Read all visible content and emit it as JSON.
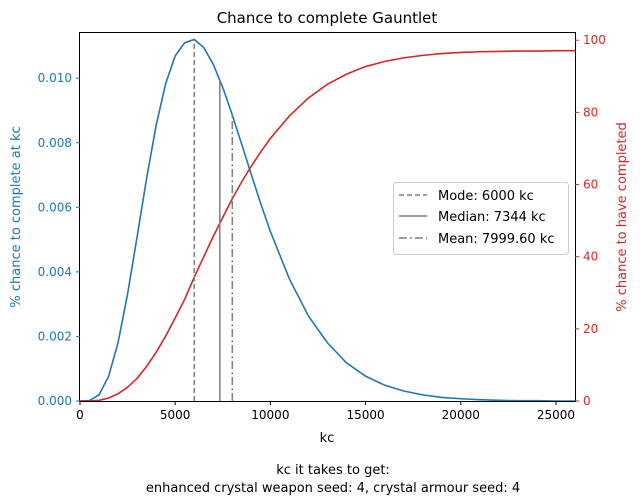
{
  "chart_data": {
    "type": "line",
    "title": "Chance to complete Gauntlet",
    "xlabel": "kc",
    "ylabel_left": "% chance to complete at kc",
    "ylabel_right": "% chance to have completed",
    "xlim": [
      0,
      26000
    ],
    "ylim_left": [
      0,
      0.0114
    ],
    "ylim_right": [
      0,
      102
    ],
    "x_ticks": [
      0,
      5000,
      10000,
      15000,
      20000,
      25000
    ],
    "x_tick_labels": [
      "0",
      "5000",
      "10000",
      "15000",
      "20000",
      "25000"
    ],
    "y_left_ticks": [
      0,
      0.002,
      0.004,
      0.006,
      0.008,
      0.01
    ],
    "y_left_tick_labels": [
      "0.000",
      "0.002",
      "0.004",
      "0.006",
      "0.008",
      "0.010"
    ],
    "y_right_ticks": [
      0,
      20,
      40,
      60,
      80,
      100
    ],
    "y_right_tick_labels": [
      "0",
      "20",
      "40",
      "60",
      "80",
      "100"
    ],
    "grid": false,
    "legend_position": "center-right",
    "series": [
      {
        "axis": "left",
        "color": "#1f77b4",
        "x": [
          0,
          500,
          1000,
          1500,
          2000,
          2500,
          3000,
          3500,
          4000,
          4500,
          5000,
          5500,
          6000,
          6500,
          7000,
          7500,
          8000,
          8500,
          9000,
          9500,
          10000,
          11000,
          12000,
          13000,
          14000,
          15000,
          16000,
          17000,
          18000,
          19000,
          20000,
          21000,
          22000,
          23000,
          24000,
          25000,
          26000
        ],
        "y": [
          0,
          1.5e-05,
          0.00019,
          0.00076,
          0.00181,
          0.00332,
          0.00509,
          0.0069,
          0.00854,
          0.00983,
          0.01069,
          0.0111,
          0.0112,
          0.01095,
          0.01043,
          0.00971,
          0.00886,
          0.00794,
          0.00701,
          0.0061,
          0.00525,
          0.00378,
          0.00263,
          0.0018,
          0.00118,
          0.00077,
          0.00049,
          0.00031,
          0.00019,
          0.00011,
          7e-05,
          4e-05,
          2e-05,
          1e-05,
          1e-05,
          0.0,
          0.0
        ]
      },
      {
        "axis": "right",
        "color": "#d62728",
        "x": [
          0,
          500,
          1000,
          1500,
          2000,
          2500,
          3000,
          3500,
          4000,
          4500,
          5000,
          5500,
          6000,
          6500,
          7000,
          7500,
          8000,
          8500,
          9000,
          9500,
          10000,
          11000,
          12000,
          13000,
          14000,
          15000,
          16000,
          17000,
          18000,
          19000,
          20000,
          21000,
          22000,
          23000,
          24000,
          25000,
          26000
        ],
        "y": [
          0,
          0.0,
          0.2,
          0.8,
          2.0,
          3.8,
          6.3,
          9.6,
          13.5,
          18.0,
          23.0,
          28.2,
          34.3,
          40.0,
          45.6,
          50.9,
          56.1,
          60.8,
          65.1,
          69.1,
          72.8,
          79.0,
          84.0,
          87.8,
          90.6,
          92.7,
          94.1,
          95.1,
          95.8,
          96.3,
          96.6,
          96.8,
          96.9,
          97.0,
          97.0,
          97.1,
          97.1
        ]
      }
    ],
    "vlines": [
      {
        "x": 6000,
        "style": "dashed",
        "color": "#808080",
        "label": "Mode: 6000 kc"
      },
      {
        "x": 7344,
        "style": "solid",
        "color": "#808080",
        "label": "Median: 7344 kc"
      },
      {
        "x": 7999.6,
        "style": "dashdot",
        "color": "#808080",
        "label": "Mean: 7999.60 kc"
      }
    ],
    "caption_lines": [
      "kc it takes to get:",
      "enhanced crystal weapon seed: 4,  crystal armour seed: 4"
    ]
  },
  "colors": {
    "left_axis": "#1f77b4",
    "right_axis": "#d62728",
    "vline": "#808080"
  }
}
